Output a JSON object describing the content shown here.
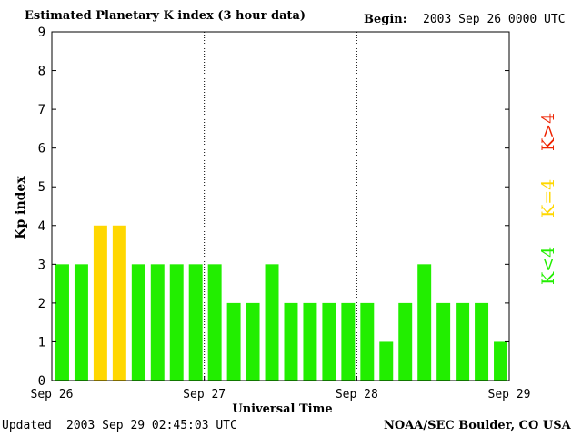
{
  "header": {
    "title": "Estimated Planetary K index (3 hour data)",
    "begin_label": "Begin:",
    "begin_value": "2003 Sep 26 0000 UTC"
  },
  "footer": {
    "updated_label": "Updated",
    "updated_value": "2003 Sep 29 02:45:03 UTC",
    "source": "NOAA/SEC Boulder, CO USA"
  },
  "legend": {
    "green_label": "K<4",
    "yellow_label": "K=4",
    "red_label": "K>4",
    "green_color": "#22ee00",
    "yellow_color": "#ffd700",
    "red_color": "#ee2200"
  },
  "chart_data": {
    "type": "bar",
    "xlabel": "Universal Time",
    "ylabel": "Kp index",
    "ylim": [
      0,
      9
    ],
    "yticks": [
      "0",
      "1",
      "2",
      "3",
      "4",
      "5",
      "6",
      "7",
      "8",
      "9"
    ],
    "xticks": [
      "Sep 26",
      "Sep 27",
      "Sep 28",
      "Sep 29"
    ],
    "values": [
      3,
      3,
      4,
      4,
      3,
      3,
      3,
      3,
      3,
      2,
      2,
      3,
      2,
      2,
      2,
      2,
      2,
      1,
      2,
      3,
      2,
      2,
      2,
      1
    ],
    "day_separators": "dotted",
    "grid": false
  }
}
